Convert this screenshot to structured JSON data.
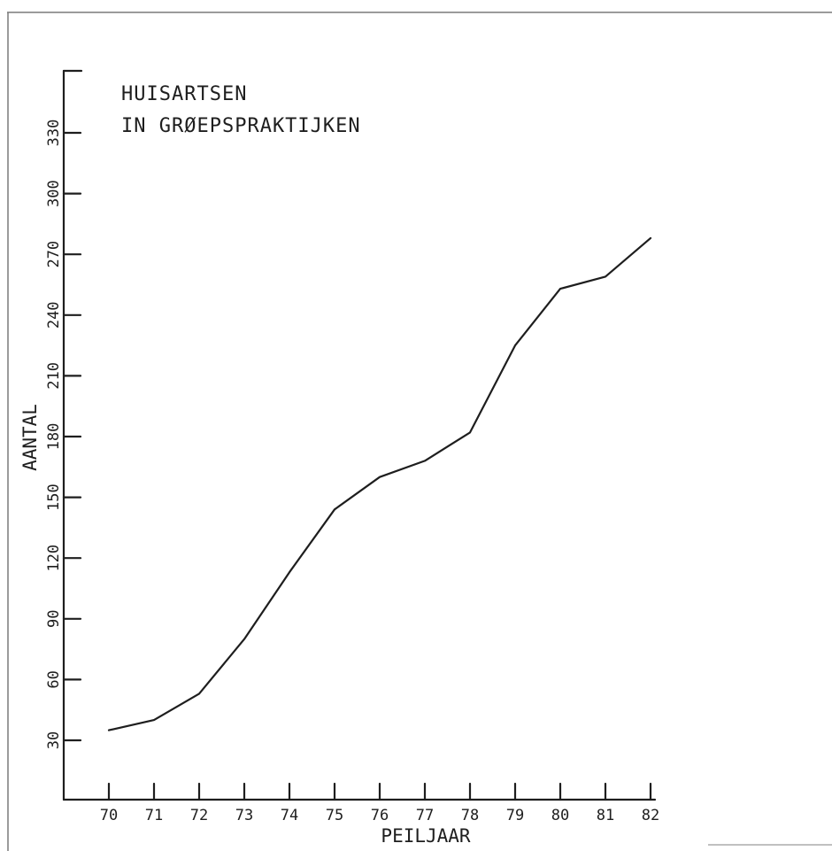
{
  "chart_data": {
    "type": "line",
    "title_lines": [
      "HUISARTSEN",
      "IN GRØEPSPRAKTIJKEN"
    ],
    "xlabel": "PEILJAAR",
    "ylabel": "AANTAL",
    "x": [
      "70",
      "71",
      "72",
      "73",
      "74",
      "75",
      "76",
      "77",
      "78",
      "79",
      "80",
      "81",
      "82"
    ],
    "values": [
      35,
      40,
      53,
      80,
      113,
      144,
      160,
      168,
      182,
      225,
      253,
      259,
      278
    ],
    "yticks": [
      "30",
      "60",
      "90",
      "120",
      "150",
      "180",
      "210",
      "240",
      "270",
      "300",
      "330"
    ],
    "ylim": [
      0,
      360
    ],
    "grid": false,
    "colors": {
      "line": "#1e1e1e",
      "background": "#ffffff"
    }
  }
}
